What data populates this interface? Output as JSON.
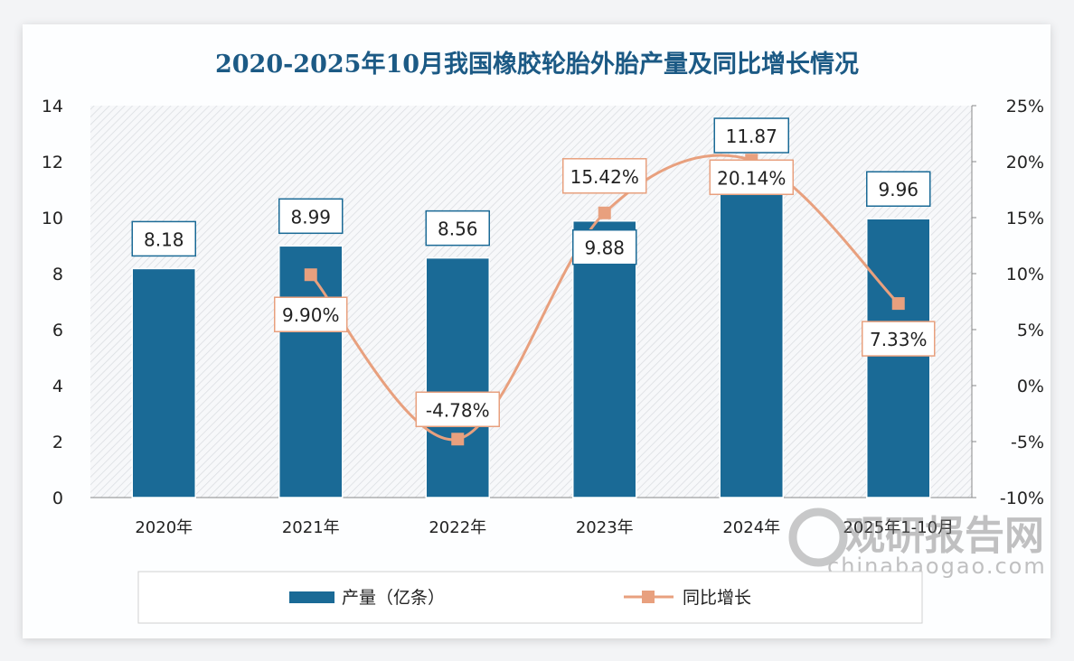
{
  "chart_data": {
    "type": "bar+line",
    "title": "2020-2025年10月我国橡胶轮胎外胎产量及同比增长情况",
    "categories": [
      "2020年",
      "2021年",
      "2022年",
      "2023年",
      "2024年",
      "2025年1-10月"
    ],
    "series": [
      {
        "name": "产量（亿条）",
        "type": "bar",
        "axis": "left",
        "values": [
          8.18,
          8.99,
          8.56,
          9.88,
          11.87,
          9.96
        ],
        "labels": [
          "8.18",
          "8.99",
          "8.56",
          "9.88",
          "11.87",
          "9.96"
        ],
        "color": "#1a6a96"
      },
      {
        "name": "同比增长",
        "type": "line",
        "axis": "right",
        "values": [
          null,
          9.9,
          -4.78,
          15.42,
          20.14,
          7.33
        ],
        "labels": [
          "",
          "9.90%",
          "-4.78%",
          "15.42%",
          "20.14%",
          "7.33%"
        ],
        "color": "#e8a07e"
      }
    ],
    "left_axis": {
      "range": [
        0,
        14
      ],
      "ticks": [
        "0",
        "2",
        "4",
        "6",
        "8",
        "10",
        "12",
        "14"
      ]
    },
    "right_axis": {
      "range": [
        -10,
        25
      ],
      "ticks": [
        "-10%",
        "-5%",
        "0%",
        "5%",
        "10%",
        "15%",
        "20%",
        "25%"
      ]
    },
    "grid": false,
    "legend": "bottom"
  },
  "watermark": {
    "brand": "观研报告网",
    "url": "chinabaogao.com"
  }
}
